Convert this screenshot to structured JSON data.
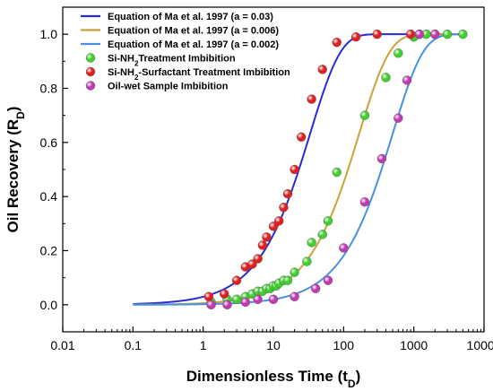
{
  "chart_data": {
    "type": "scatter",
    "xlabel": "Dimensionless Time",
    "xlabel_sub": "D",
    "ylabel": "Oil Recovery",
    "ylabel_sub": "D",
    "x_scale": "log",
    "xlim": [
      0.01,
      10000
    ],
    "ylim": [
      -0.1,
      1.1
    ],
    "x_ticks": [
      0.01,
      0.1,
      1,
      10,
      100,
      1000,
      10000
    ],
    "x_tick_labels": [
      "0.01",
      "0.1",
      "1",
      "10",
      "100",
      "1000",
      "10000"
    ],
    "y_ticks": [
      0.0,
      0.2,
      0.4,
      0.6,
      0.8,
      1.0
    ],
    "y_tick_labels": [
      "0.0",
      "0.2",
      "0.4",
      "0.6",
      "0.8",
      "1.0"
    ],
    "grid": false,
    "legend_position": "top-left",
    "series": [
      {
        "name": "Equation of Ma et al. 1997 (a = 0.03)",
        "kind": "line",
        "color": "#2b2bd4",
        "a": 0.03,
        "x_range": [
          0.1,
          5000
        ]
      },
      {
        "name": "Equation of Ma et al. 1997 (a = 0.006)",
        "kind": "line",
        "color": "#c9a23a",
        "a": 0.006,
        "x_range": [
          0.1,
          5000
        ]
      },
      {
        "name": "Equation of Ma et al. 1997 (a = 0.002)",
        "kind": "line",
        "color": "#4a90e2",
        "a": 0.002,
        "x_range": [
          0.1,
          5000
        ]
      },
      {
        "name_parts": [
          "Si-NH",
          "2",
          "Treatment Imbibition"
        ],
        "kind": "points",
        "color": "#3fcf2f",
        "x": [
          1.3,
          2.2,
          3,
          4,
          5,
          6,
          7,
          8,
          9,
          10,
          11,
          12,
          14,
          16,
          20,
          30,
          35,
          50,
          60,
          80,
          200,
          400,
          600,
          1000,
          1200,
          1500,
          2000,
          3000,
          5000
        ],
        "y": [
          0.01,
          0.02,
          0.02,
          0.03,
          0.04,
          0.05,
          0.05,
          0.06,
          0.06,
          0.07,
          0.07,
          0.08,
          0.09,
          0.09,
          0.12,
          0.16,
          0.23,
          0.26,
          0.31,
          0.49,
          0.7,
          0.84,
          0.93,
          0.99,
          1.0,
          1.0,
          1.0,
          1.0,
          1.0
        ]
      },
      {
        "name_parts": [
          "Si-NH",
          "2",
          "-Surfactant Treatment Imbibition"
        ],
        "kind": "points",
        "color": "#e02020",
        "x": [
          1.2,
          2,
          3,
          4,
          5,
          6,
          7,
          8,
          10,
          12,
          14,
          16,
          20,
          25,
          35,
          50,
          80,
          150,
          300,
          900
        ],
        "y": [
          0.03,
          0.04,
          0.09,
          0.14,
          0.15,
          0.17,
          0.22,
          0.25,
          0.29,
          0.31,
          0.36,
          0.41,
          0.5,
          0.62,
          0.76,
          0.87,
          0.97,
          0.99,
          1.0,
          1.0
        ]
      },
      {
        "name": "Oil-wet Sample Imbibition",
        "kind": "points",
        "color": "#c03ab0",
        "x": [
          1.3,
          2.2,
          4,
          6,
          10,
          20,
          40,
          60,
          100,
          200,
          350,
          600,
          800,
          1200,
          2000
        ],
        "y": [
          0.0,
          0.0,
          0.01,
          0.02,
          0.02,
          0.03,
          0.06,
          0.09,
          0.21,
          0.38,
          0.54,
          0.69,
          0.83,
          1.0,
          1.0
        ]
      }
    ]
  }
}
